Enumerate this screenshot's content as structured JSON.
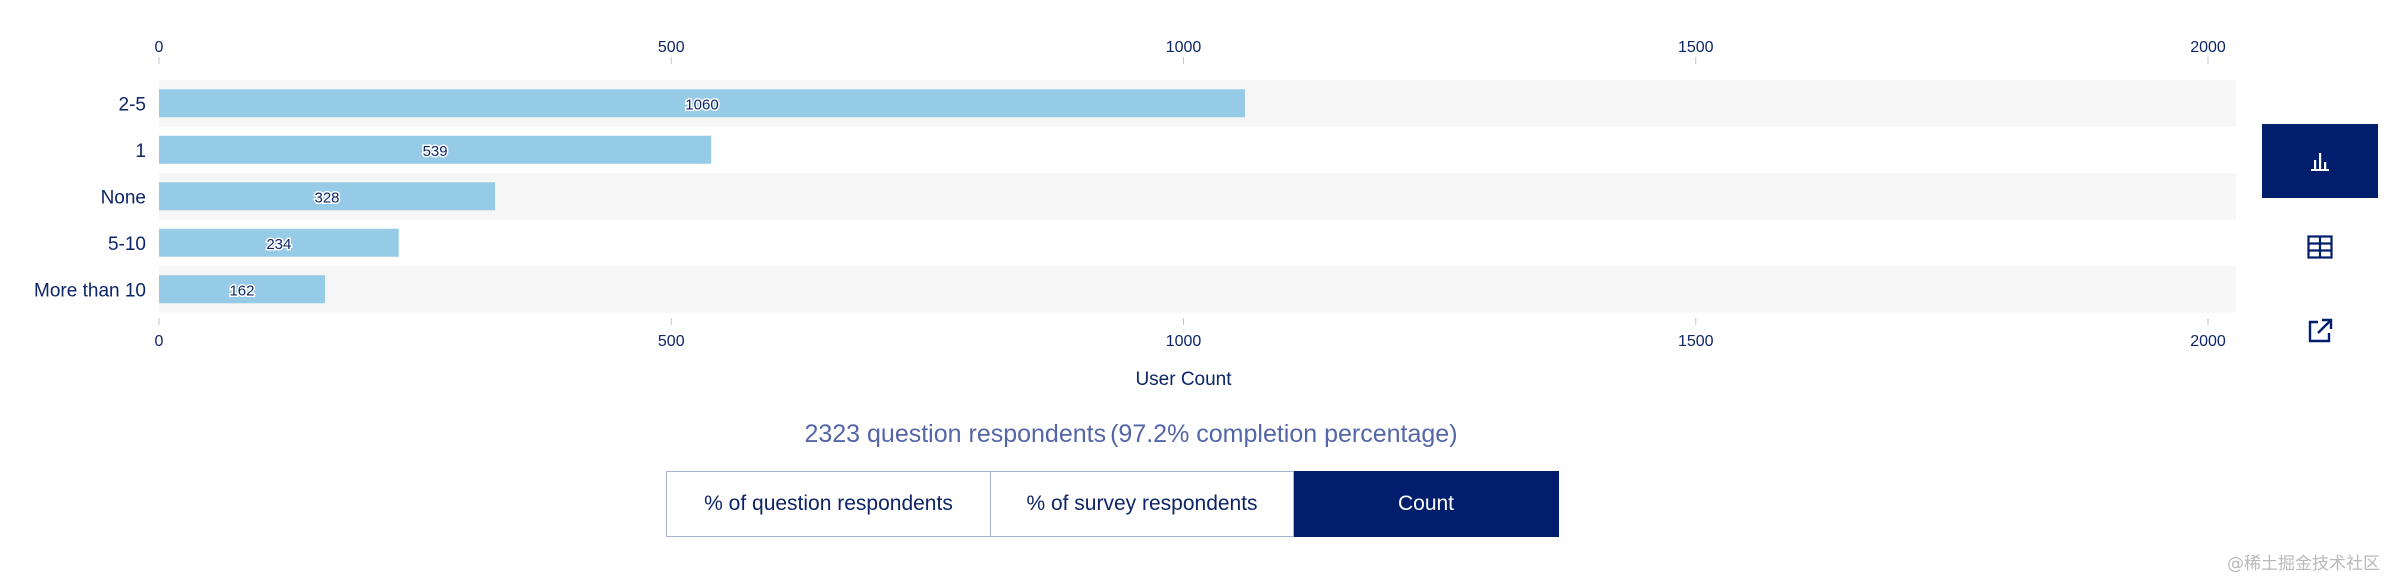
{
  "chart_data": {
    "type": "bar",
    "orientation": "horizontal",
    "categories": [
      "2-5",
      "1",
      "None",
      "5-10",
      "More than 10"
    ],
    "values": [
      1060,
      539,
      328,
      234,
      162
    ],
    "xlabel": "User Count",
    "xlim": [
      0,
      2025
    ],
    "xticks": [
      0,
      500,
      1000,
      1500,
      2000
    ],
    "tick_labels": [
      "0",
      "500",
      "1000",
      "1500",
      "2000"
    ],
    "bar_color": "#95cbe6",
    "stripe_color": "#f6f6f6"
  },
  "summary": {
    "respondents": "2323 question respondents",
    "completion": "(97.2% completion percentage)"
  },
  "toggles": [
    {
      "label": "% of question respondents",
      "selected": false
    },
    {
      "label": "% of survey respondents",
      "selected": false
    },
    {
      "label": "Count",
      "selected": true
    }
  ],
  "toolbar": {
    "buttons": [
      {
        "icon": "bar-chart-icon",
        "active": true
      },
      {
        "icon": "table-icon",
        "active": false
      },
      {
        "icon": "external-link-icon",
        "active": false
      }
    ]
  },
  "colors": {
    "primary": "#001e6b",
    "text": "#0d2466",
    "summary_text": "#5566a8"
  },
  "watermark": "@稀土掘金技术社区"
}
